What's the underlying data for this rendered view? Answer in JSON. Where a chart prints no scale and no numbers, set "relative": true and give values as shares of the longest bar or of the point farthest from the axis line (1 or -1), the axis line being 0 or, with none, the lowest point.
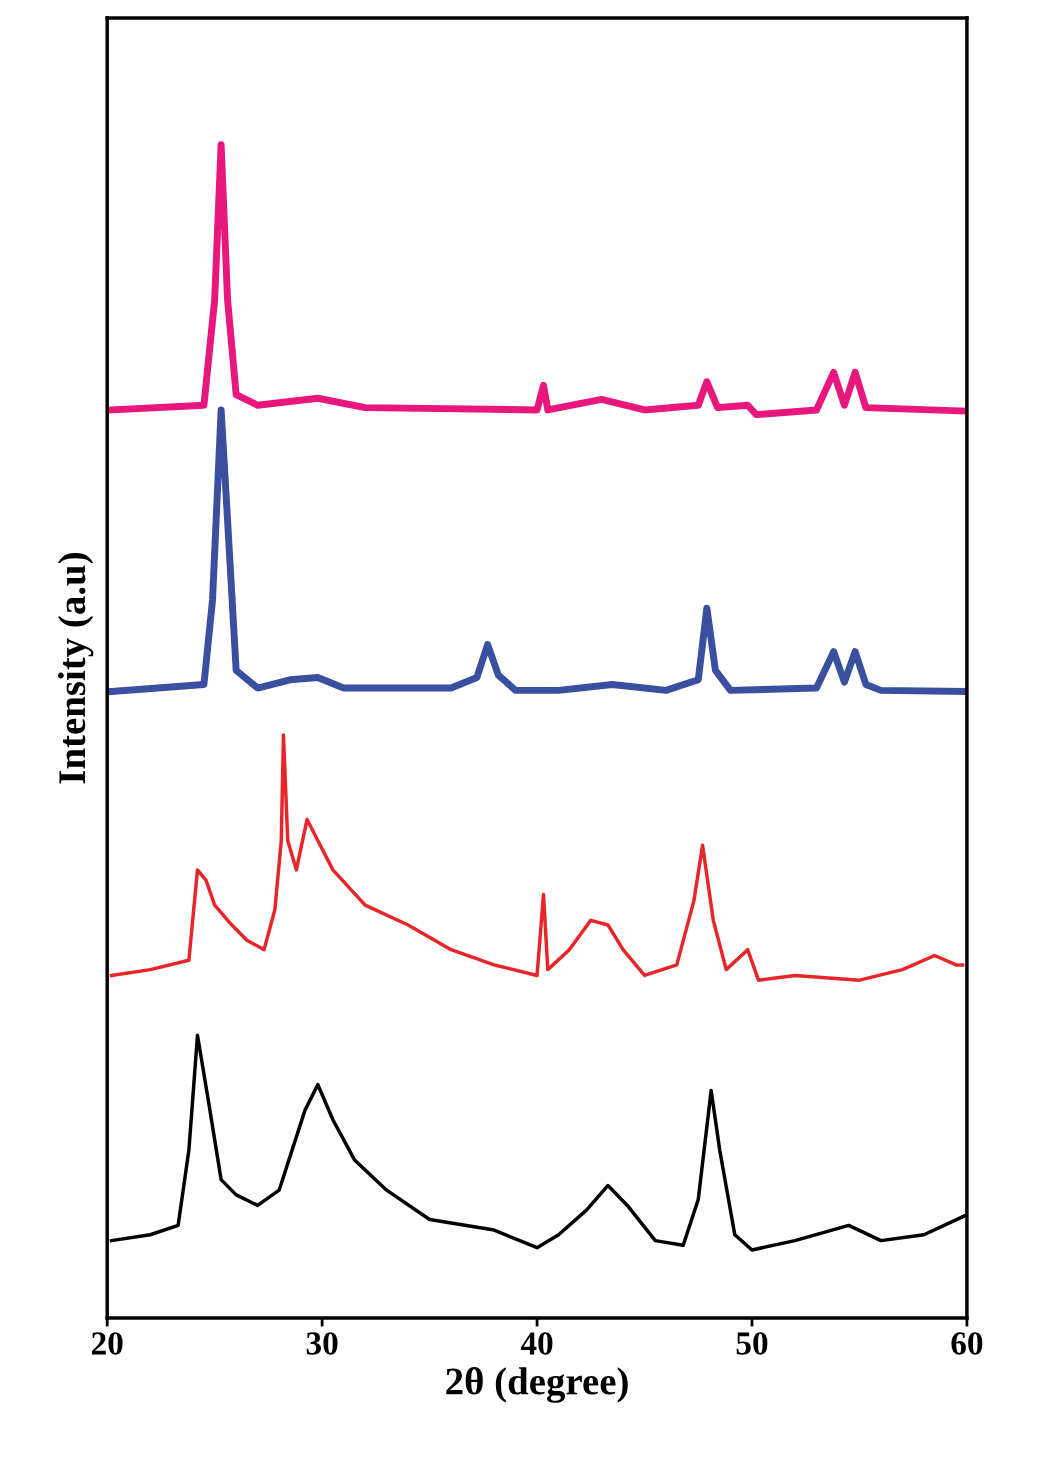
{
  "chart_data": {
    "type": "line",
    "relative": true,
    "xlabel": "2θ (degree)",
    "ylabel": "Intensity (a.u)",
    "xlim": [
      20,
      60
    ],
    "xticks": [
      20,
      30,
      40,
      50,
      60
    ],
    "grid": false,
    "legend": false,
    "marker": "none",
    "line_style": "solid",
    "series": [
      {
        "color": "#e8177e",
        "x": [
          20.2,
          24.5,
          25.0,
          25.3,
          25.6,
          26.0,
          27,
          29.8,
          32,
          40,
          40.3,
          40.5,
          43,
          45,
          47.5,
          47.9,
          48.4,
          49.8,
          50.2,
          53,
          53.8,
          54.3,
          54.8,
          55.3,
          60
        ],
        "values": [
          0.774,
          0.778,
          0.868,
          1.0,
          0.868,
          0.787,
          0.778,
          0.784,
          0.776,
          0.774,
          0.795,
          0.774,
          0.783,
          0.774,
          0.778,
          0.798,
          0.776,
          0.778,
          0.77,
          0.774,
          0.806,
          0.778,
          0.806,
          0.776,
          0.773
        ]
      },
      {
        "color": "#3a4fa0",
        "x": [
          20.2,
          24.5,
          24.9,
          25.3,
          25.6,
          26.0,
          27,
          28.5,
          29.8,
          31,
          36,
          37.2,
          37.7,
          38.2,
          39,
          41,
          43.5,
          46,
          47.5,
          47.9,
          48.3,
          49,
          53,
          53.8,
          54.3,
          54.8,
          55.3,
          56,
          60
        ],
        "values": [
          0.534,
          0.54,
          0.612,
          0.774,
          0.68,
          0.552,
          0.537,
          0.544,
          0.546,
          0.537,
          0.537,
          0.546,
          0.574,
          0.548,
          0.535,
          0.535,
          0.54,
          0.535,
          0.544,
          0.605,
          0.552,
          0.535,
          0.537,
          0.568,
          0.542,
          0.568,
          0.54,
          0.535,
          0.534
        ]
      },
      {
        "color": "#e8262a",
        "x": [
          20.2,
          22,
          23.8,
          24.2,
          24.6,
          25,
          25.8,
          26.5,
          27.3,
          27.8,
          28.1,
          28.2,
          28.4,
          28.8,
          29.3,
          29.8,
          30.5,
          32,
          34,
          36,
          38,
          40,
          40.3,
          40.5,
          41.5,
          42.5,
          43.3,
          44,
          45,
          46.5,
          47.3,
          47.7,
          48.2,
          48.8,
          49.8,
          50.3,
          52,
          55,
          57,
          58.5,
          59.5,
          59.8
        ],
        "values": [
          0.292,
          0.297,
          0.305,
          0.382,
          0.373,
          0.352,
          0.335,
          0.322,
          0.314,
          0.348,
          0.407,
          0.497,
          0.407,
          0.382,
          0.425,
          0.407,
          0.382,
          0.352,
          0.335,
          0.314,
          0.301,
          0.292,
          0.361,
          0.297,
          0.314,
          0.339,
          0.335,
          0.314,
          0.292,
          0.301,
          0.356,
          0.403,
          0.339,
          0.297,
          0.314,
          0.288,
          0.292,
          0.288,
          0.297,
          0.309,
          0.301,
          0.301
        ]
      },
      {
        "color": "#000000",
        "x": [
          20.2,
          22,
          23.3,
          23.8,
          24.2,
          24.7,
          25.3,
          26,
          27,
          28,
          29.2,
          29.8,
          30.5,
          31.5,
          33,
          35,
          38,
          40,
          41,
          42.3,
          43.3,
          44.2,
          45.5,
          46.8,
          47.5,
          48.1,
          48.5,
          49.2,
          50,
          52,
          54.5,
          56,
          58,
          60
        ],
        "values": [
          0.066,
          0.071,
          0.079,
          0.143,
          0.241,
          0.186,
          0.118,
          0.105,
          0.096,
          0.109,
          0.177,
          0.199,
          0.169,
          0.135,
          0.109,
          0.084,
          0.075,
          0.06,
          0.071,
          0.092,
          0.113,
          0.096,
          0.066,
          0.062,
          0.101,
          0.194,
          0.143,
          0.071,
          0.058,
          0.066,
          0.079,
          0.066,
          0.071,
          0.088
        ]
      }
    ]
  }
}
